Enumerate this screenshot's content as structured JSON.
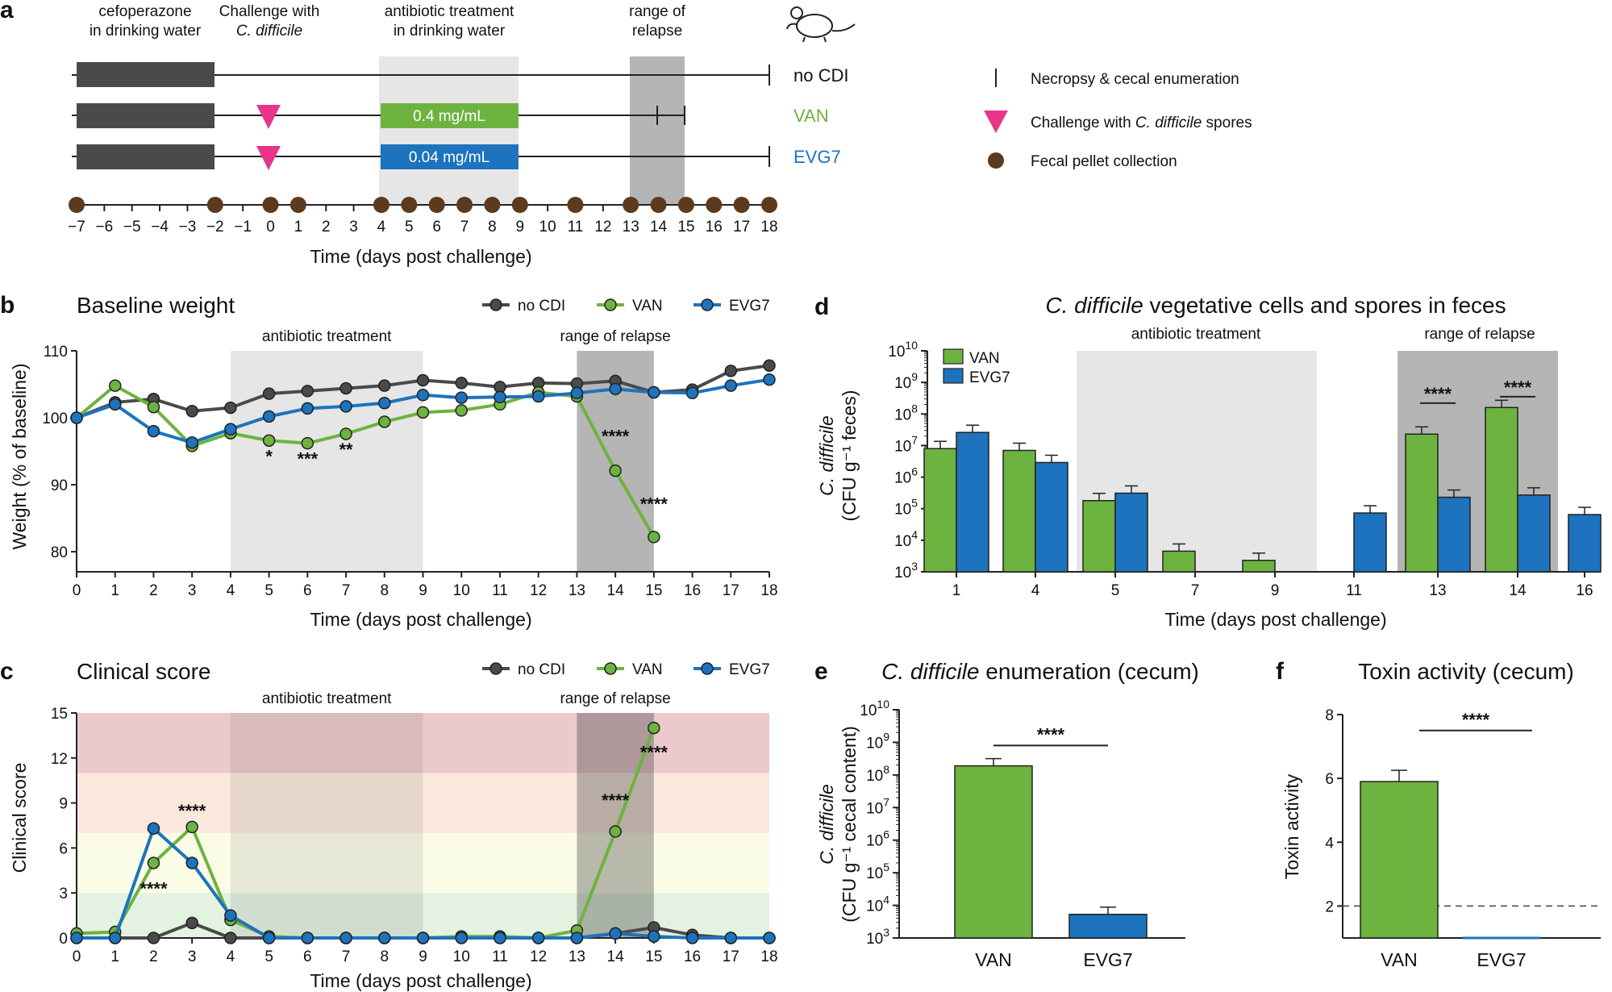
{
  "panel_a": {
    "letter": "a",
    "labels": {
      "cefo": [
        "cefoperazone",
        "in drinking water"
      ],
      "challenge": [
        "Challenge with",
        "C. difficile"
      ],
      "abx": [
        "antibiotic treatment",
        "in drinking water"
      ],
      "relapse": [
        "range of",
        "relapse"
      ]
    },
    "groups": [
      "no CDI",
      "VAN",
      "EVG7"
    ],
    "dose_van": "0.4 mg/mL",
    "dose_evg": "0.04 mg/mL",
    "legend": {
      "necropsy": "Necropsy & cecal enumeration",
      "challenge_prefix": "Challenge with ",
      "challenge_italic": "C. difficile",
      "challenge_suffix": " spores",
      "fecal": "Fecal pellet collection"
    },
    "ticks": [
      "−7",
      "−6",
      "−5",
      "−4",
      "−3",
      "−2",
      "−1",
      "0",
      "1",
      "2",
      "3",
      "4",
      "5",
      "6",
      "7",
      "8",
      "9",
      "10",
      "11",
      "12",
      "13",
      "14",
      "15",
      "16",
      "17",
      "18"
    ],
    "fecal_days": [
      -7,
      -2,
      0,
      1,
      4,
      5,
      6,
      7,
      8,
      9,
      11,
      13,
      14,
      15,
      16,
      17,
      18
    ],
    "xlabel": "Time (days post challenge)"
  },
  "chart_data": [
    {
      "panel": "b",
      "type": "line",
      "title": "Baseline weight",
      "xlabel": "Time (days post challenge)",
      "ylabel": "Weight (% of baseline)",
      "ylim": [
        77,
        110
      ],
      "yticks": [
        "80",
        "90",
        "100",
        "110"
      ],
      "x": [
        0,
        1,
        2,
        3,
        4,
        5,
        6,
        7,
        8,
        9,
        10,
        11,
        12,
        13,
        14,
        15,
        16,
        17,
        18
      ],
      "shading": {
        "antibiotic": [
          4,
          9
        ],
        "relapse": [
          13,
          15
        ]
      },
      "shade_labels": {
        "antibiotic": "antibiotic treatment",
        "relapse": "range of relapse"
      },
      "series": [
        {
          "name": "no CDI",
          "color": "#4a4a4a",
          "values": [
            100,
            102.3,
            102.8,
            101,
            101.5,
            103.6,
            104,
            104.4,
            104.8,
            105.6,
            105.2,
            104.6,
            105.2,
            105.1,
            105.5,
            103.8,
            104.2,
            107,
            107.8
          ]
        },
        {
          "name": "VAN",
          "color": "#6db33f",
          "values": [
            100,
            104.8,
            101.6,
            95.8,
            97.7,
            96.6,
            96.2,
            97.6,
            99.4,
            100.8,
            101.1,
            102,
            103.8,
            103.2,
            92.1,
            82.2,
            null,
            null,
            null
          ]
        },
        {
          "name": "EVG7",
          "color": "#1d73bd",
          "values": [
            100,
            102,
            98,
            96.3,
            98.3,
            100.2,
            101.4,
            101.7,
            102.2,
            103.4,
            103,
            103.1,
            103.2,
            103.7,
            104.3,
            103.8,
            103.7,
            104.8,
            105.7
          ]
        }
      ],
      "annotations": [
        {
          "x": 5,
          "y": 94.3,
          "text": "*"
        },
        {
          "x": 6,
          "y": 93.9,
          "text": "***"
        },
        {
          "x": 7,
          "y": 95.3,
          "text": "**"
        },
        {
          "x": 14,
          "y": 97.3,
          "text": "****"
        },
        {
          "x": 15,
          "y": 87.2,
          "text": "****"
        }
      ]
    },
    {
      "panel": "c",
      "type": "line",
      "title": "Clinical score",
      "xlabel": "Time (days post challenge)",
      "ylabel": "Clinical score",
      "ylim": [
        0,
        15
      ],
      "yticks": [
        "0",
        "3",
        "6",
        "9",
        "12",
        "15"
      ],
      "x": [
        0,
        1,
        2,
        3,
        4,
        5,
        6,
        7,
        8,
        9,
        10,
        11,
        12,
        13,
        14,
        15,
        16,
        17,
        18
      ],
      "bands": [
        {
          "range": [
            0,
            3
          ],
          "color": "#e3f2e1"
        },
        {
          "range": [
            3,
            7
          ],
          "color": "#fbfce6"
        },
        {
          "range": [
            7,
            11
          ],
          "color": "#fbe8dc"
        },
        {
          "range": [
            11,
            15
          ],
          "color": "#ecc9cc"
        }
      ],
      "shading": {
        "antibiotic": [
          4,
          9
        ],
        "relapse": [
          13,
          15
        ]
      },
      "shade_labels": {
        "antibiotic": "antibiotic treatment",
        "relapse": "range of relapse"
      },
      "series": [
        {
          "name": "no CDI",
          "color": "#4a4a4a",
          "values": [
            0,
            0,
            0,
            1,
            0,
            0,
            0,
            0,
            0,
            0,
            0,
            0,
            0,
            0,
            0.3,
            0.7,
            0.2,
            0,
            0
          ]
        },
        {
          "name": "VAN",
          "color": "#6db33f",
          "values": [
            0.3,
            0.4,
            5,
            7.4,
            1.2,
            0.1,
            0,
            0,
            0,
            0,
            0.1,
            0.1,
            0,
            0.5,
            7.1,
            14,
            null,
            null,
            null
          ]
        },
        {
          "name": "EVG7",
          "color": "#1d73bd",
          "values": [
            0,
            0,
            7.3,
            5,
            1.5,
            0,
            0,
            0,
            0,
            0,
            0,
            0,
            0,
            0,
            0.3,
            0.1,
            0,
            0,
            0
          ]
        }
      ],
      "annotations": [
        {
          "x": 2,
          "y": 3.3,
          "text": "****"
        },
        {
          "x": 3,
          "y": 8.5,
          "text": "****"
        },
        {
          "x": 14,
          "y": 9.2,
          "text": "****"
        },
        {
          "x": 15,
          "y": 12.4,
          "text": "****"
        }
      ]
    },
    {
      "panel": "d",
      "type": "bar",
      "title_italic": "C. difficile",
      "title_rest": " vegetative cells and spores in feces",
      "xlabel": "Time (days post challenge)",
      "ylabel_italic": "C. difficile",
      "ylabel_unit": "(CFU g⁻¹ feces)",
      "scale": "log",
      "ylim": [
        1000,
        10000000000
      ],
      "categories": [
        "1",
        "4",
        "5",
        "7",
        "9",
        "11",
        "13",
        "14",
        "16"
      ],
      "shading": {
        "antibiotic": [
          "5",
          "9"
        ],
        "relapse": [
          "13",
          "14"
        ]
      },
      "shade_labels": {
        "antibiotic": "antibiotic treatment",
        "relapse": "range of relapse"
      },
      "series": [
        {
          "name": "VAN",
          "color": "#6db33f",
          "values": [
            8000000,
            7000000,
            180000,
            4500,
            2300,
            1000,
            23000000,
            160000000,
            null
          ]
        },
        {
          "name": "EVG7",
          "color": "#1d73bd",
          "values": [
            26000000,
            2900000,
            310000,
            1000,
            1000,
            73000,
            230000,
            270000,
            65000
          ]
        }
      ],
      "significance": [
        {
          "category": "13",
          "text": "****"
        },
        {
          "category": "14",
          "text": "****"
        }
      ]
    },
    {
      "panel": "e",
      "type": "bar",
      "title_italic": "C. difficile",
      "title_rest": " enumeration (cecum)",
      "ylabel_italic": "C. difficile",
      "ylabel_unit": "(CFU g⁻¹ cecal content)",
      "scale": "log",
      "ylim": [
        1000,
        10000000000
      ],
      "categories": [
        "VAN",
        "EVG7"
      ],
      "values": [
        190000000,
        5300
      ],
      "colors": [
        "#6db33f",
        "#1d73bd"
      ],
      "significance": "****"
    },
    {
      "panel": "f",
      "type": "bar",
      "title": "Toxin activity (cecum)",
      "ylabel": "Toxin activity",
      "ylim": [
        1,
        8
      ],
      "yticks": [
        "2",
        "4",
        "6",
        "8"
      ],
      "categories": [
        "VAN",
        "EVG7"
      ],
      "values": [
        5.9,
        1
      ],
      "colors": [
        "#6db33f",
        "#1d73bd"
      ],
      "detection_limit": 2,
      "significance": "****"
    }
  ]
}
